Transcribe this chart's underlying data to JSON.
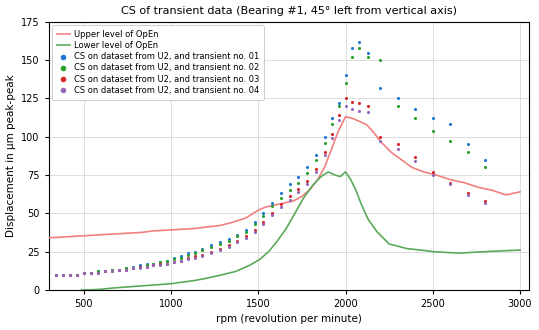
{
  "title": "CS of transient data (Bearing #1, 45° left from vertical axis)",
  "xlabel": "rpm (revolution per minute)",
  "ylabel": "Displacement in μm peak-peak",
  "xlim": [
    300,
    3050
  ],
  "ylim": [
    0,
    175
  ],
  "yticks": [
    0,
    25,
    50,
    75,
    100,
    125,
    150,
    175
  ],
  "xticks": [
    500,
    1000,
    1500,
    2000,
    2500,
    3000
  ],
  "background_color": "#ffffff",
  "grid_color": "#d0d0d0",
  "upper_line_color": "#f08080",
  "lower_line_color": "#5aaa5a",
  "upper_line": {
    "x": [
      300,
      380,
      450,
      530,
      600,
      680,
      750,
      830,
      900,
      980,
      1050,
      1130,
      1200,
      1280,
      1350,
      1430,
      1500,
      1540,
      1580,
      1620,
      1660,
      1700,
      1750,
      1800,
      1840,
      1880,
      1920,
      1960,
      2000,
      2040,
      2080,
      2120,
      2160,
      2200,
      2260,
      2320,
      2380,
      2450,
      2520,
      2600,
      2680,
      2760,
      2840,
      2920,
      3000
    ],
    "y": [
      34,
      34.5,
      35,
      35.5,
      36,
      36.5,
      37,
      37.5,
      38.5,
      39,
      39.5,
      40,
      41,
      42,
      44,
      47,
      52,
      54,
      55,
      56,
      57,
      58,
      61,
      66,
      72,
      80,
      92,
      104,
      113,
      112,
      110,
      108,
      103,
      97,
      90,
      85,
      80,
      77,
      75,
      72,
      70,
      67,
      65,
      62,
      64
    ]
  },
  "lower_line": {
    "x": [
      490,
      530,
      570,
      610,
      650,
      700,
      760,
      820,
      880,
      940,
      1000,
      1060,
      1130,
      1200,
      1280,
      1370,
      1450,
      1510,
      1560,
      1610,
      1660,
      1710,
      1760,
      1810,
      1860,
      1900,
      1940,
      1970,
      2000,
      2030,
      2060,
      2090,
      2130,
      2180,
      2250,
      2350,
      2430,
      2500,
      2570,
      2650,
      2730,
      2810,
      2900,
      3000
    ],
    "y": [
      0,
      0,
      0.2,
      0.5,
      1,
      1.5,
      2,
      2.5,
      3,
      3.5,
      4,
      5,
      6,
      7.5,
      9.5,
      12,
      16,
      20,
      25,
      32,
      40,
      50,
      60,
      68,
      74,
      77,
      75,
      74,
      77,
      72,
      65,
      56,
      46,
      38,
      30,
      27,
      26,
      25,
      24.5,
      24,
      24.5,
      25,
      25.5,
      26
    ]
  },
  "scatter1": {
    "color": "#1f77d4",
    "x": [
      340,
      380,
      420,
      460,
      500,
      540,
      580,
      620,
      660,
      700,
      740,
      780,
      820,
      860,
      900,
      940,
      980,
      1020,
      1060,
      1100,
      1140,
      1180,
      1230,
      1280,
      1330,
      1380,
      1430,
      1480,
      1530,
      1580,
      1630,
      1680,
      1730,
      1780,
      1830,
      1880,
      1920,
      1960,
      2000,
      2040,
      2080,
      2130,
      2200,
      2300,
      2400,
      2500,
      2600,
      2700,
      2800
    ],
    "y": [
      10,
      10,
      10,
      10,
      11,
      11,
      12,
      12,
      13,
      13,
      14,
      15,
      16,
      17,
      17,
      18,
      19,
      21,
      22,
      24,
      25,
      27,
      29,
      31,
      33,
      36,
      39,
      44,
      50,
      57,
      63,
      69,
      74,
      80,
      88,
      100,
      112,
      122,
      140,
      158,
      162,
      155,
      132,
      125,
      118,
      112,
      108,
      95,
      85
    ],
    "label": "CS on dataset from U2, and transient no. 01"
  },
  "scatter2": {
    "color": "#2ca02c",
    "x": [
      340,
      380,
      420,
      460,
      500,
      540,
      580,
      620,
      660,
      700,
      740,
      780,
      820,
      860,
      900,
      940,
      980,
      1020,
      1060,
      1100,
      1140,
      1180,
      1230,
      1280,
      1330,
      1380,
      1430,
      1480,
      1530,
      1580,
      1630,
      1680,
      1730,
      1780,
      1830,
      1880,
      1920,
      1960,
      2000,
      2040,
      2080,
      2130,
      2200,
      2300,
      2400,
      2500,
      2600,
      2700,
      2800
    ],
    "y": [
      10,
      10,
      10,
      10,
      11,
      11,
      12,
      12,
      13,
      13,
      14,
      14,
      15,
      16,
      17,
      18,
      19,
      20,
      21,
      23,
      24,
      26,
      28,
      30,
      32,
      35,
      38,
      43,
      48,
      55,
      60,
      65,
      70,
      76,
      85,
      96,
      108,
      120,
      135,
      152,
      158,
      152,
      150,
      120,
      112,
      104,
      97,
      90,
      80
    ],
    "label": "CS on dataset from U2, and transient no. 02"
  },
  "scatter3": {
    "color": "#d62728",
    "x": [
      340,
      380,
      420,
      460,
      500,
      540,
      580,
      620,
      660,
      700,
      740,
      780,
      820,
      860,
      900,
      940,
      980,
      1020,
      1060,
      1100,
      1140,
      1180,
      1230,
      1280,
      1330,
      1380,
      1430,
      1480,
      1530,
      1580,
      1630,
      1680,
      1730,
      1780,
      1830,
      1880,
      1920,
      1960,
      2000,
      2040,
      2080,
      2130,
      2200,
      2300,
      2400,
      2500,
      2600,
      2700,
      2800
    ],
    "y": [
      10,
      10,
      10,
      10,
      11,
      11,
      11,
      12,
      12,
      13,
      13,
      14,
      15,
      15,
      16,
      17,
      17,
      18,
      19,
      21,
      22,
      23,
      25,
      27,
      29,
      32,
      35,
      39,
      44,
      50,
      56,
      61,
      66,
      71,
      79,
      90,
      102,
      114,
      125,
      123,
      122,
      120,
      100,
      95,
      87,
      77,
      70,
      63,
      58
    ],
    "label": "CS on dataset from U2, and transient no. 03"
  },
  "scatter4": {
    "color": "#9467bd",
    "x": [
      340,
      380,
      420,
      460,
      500,
      540,
      580,
      620,
      660,
      700,
      740,
      780,
      820,
      860,
      900,
      940,
      980,
      1020,
      1060,
      1100,
      1140,
      1180,
      1230,
      1280,
      1330,
      1380,
      1430,
      1480,
      1530,
      1580,
      1630,
      1680,
      1730,
      1780,
      1830,
      1880,
      1920,
      1960,
      2000,
      2040,
      2080,
      2130,
      2200,
      2300,
      2400,
      2500,
      2600,
      2700,
      2800
    ],
    "y": [
      10,
      10,
      10,
      10,
      11,
      11,
      11,
      12,
      12,
      13,
      13,
      14,
      14,
      15,
      16,
      16,
      17,
      18,
      19,
      20,
      21,
      22,
      24,
      26,
      28,
      31,
      34,
      38,
      43,
      49,
      54,
      59,
      64,
      69,
      77,
      88,
      99,
      111,
      120,
      118,
      117,
      116,
      97,
      92,
      84,
      75,
      69,
      62,
      57
    ],
    "label": "CS on dataset from U2, and transient no. 04"
  }
}
